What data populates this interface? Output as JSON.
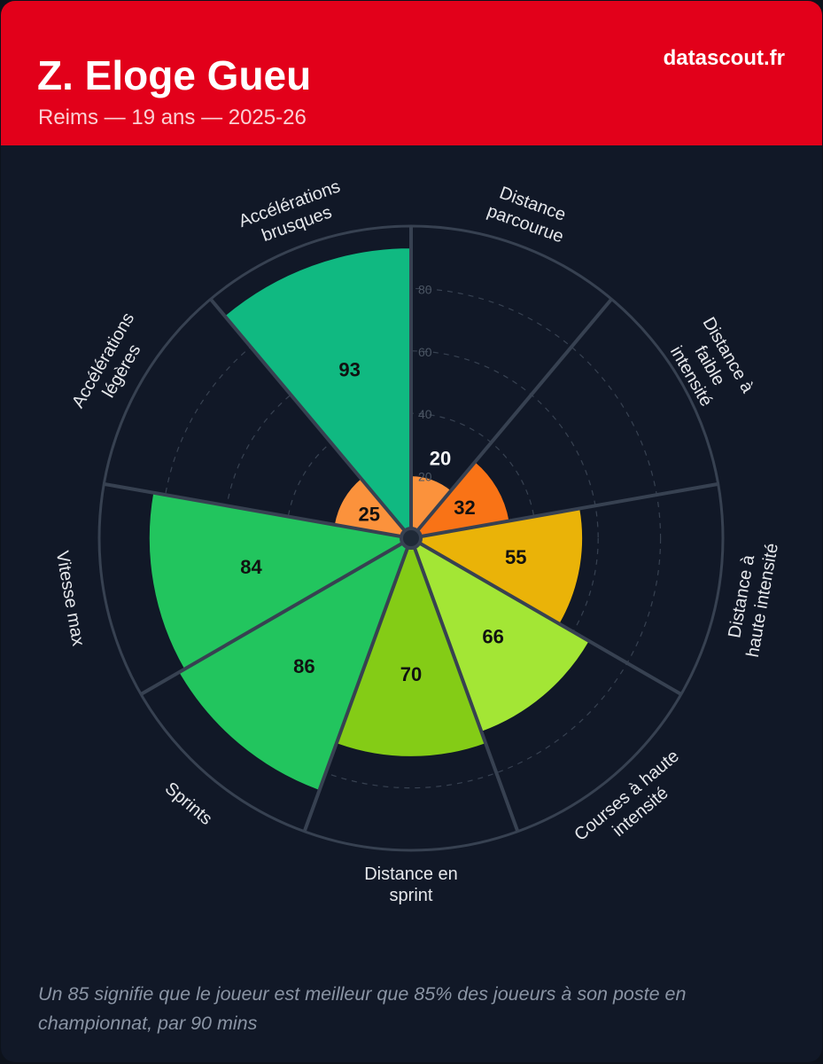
{
  "header": {
    "player_name": "Z. Eloge Gueu",
    "subtitle": "Reims — 19 ans — 2025-26",
    "brand": "datascout.fr"
  },
  "footnote": "Un 85 signifie que le joueur est meilleur que 85% des joueurs à son poste en championnat, par 90 mins",
  "colors": {
    "header_bg": "#e2001a",
    "card_bg": "#111827",
    "grid": "#374151",
    "separator": "#374151",
    "value_low": "#fb923c",
    "value_mid_low": "#f97316",
    "value_mid": "#eab308",
    "value_mid_high": "#a3e635",
    "value_high": "#84cc16",
    "value_top": "#22c55e",
    "value_elite": "#10b981"
  },
  "chart_data": {
    "type": "polar-bar",
    "title": "",
    "rlim": [
      0,
      100
    ],
    "ticks": [
      20,
      40,
      60,
      80
    ],
    "categories": [
      [
        "Distance",
        "parcourue"
      ],
      [
        "Distance à",
        "faible",
        "intensité"
      ],
      [
        "Distance à",
        "haute intensité"
      ],
      [
        "Courses à haute",
        "intensité"
      ],
      [
        "Distance en",
        "sprint"
      ],
      [
        "Sprints"
      ],
      [
        "Vitesse max"
      ],
      [
        "Accélérations",
        "légères"
      ],
      [
        "Accélérations",
        "brusques"
      ]
    ],
    "values": [
      20,
      32,
      55,
      66,
      70,
      86,
      84,
      25,
      93
    ],
    "bar_colors": [
      "#fb923c",
      "#f97316",
      "#eab308",
      "#a3e635",
      "#84cc16",
      "#22c55e",
      "#22c55e",
      "#fb923c",
      "#10b981"
    ]
  }
}
